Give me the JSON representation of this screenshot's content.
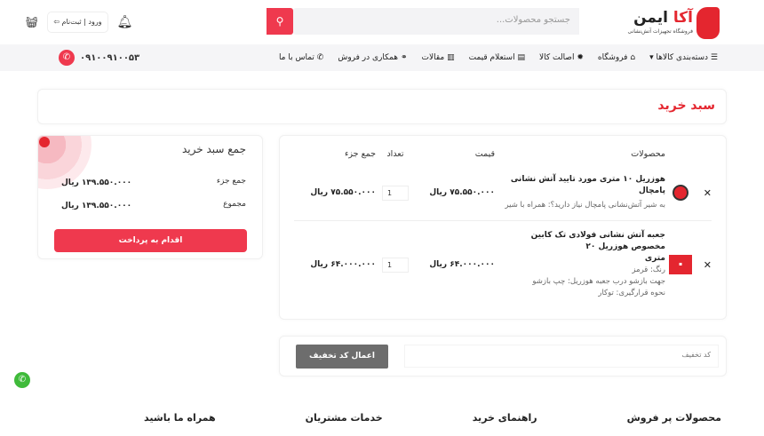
{
  "header": {
    "logo_name_red": "آکا",
    "logo_name_dark": "ایمن",
    "logo_subtitle": "فروشگاه تجهیزات آتش‌نشانی",
    "search_placeholder": "جستجو محصولات...",
    "login_label": "ورود | ثبت‌نام"
  },
  "nav": {
    "items": [
      "دسته‌بندی کالاها",
      "فروشگاه",
      "اصالت کالا",
      "استعلام قیمت",
      "مقالات",
      "همکاری در فروش",
      "تماس با ما"
    ],
    "phone": "۰۹۱۰۰۹۱۰۰۵۳"
  },
  "page_title": "سبد خرید",
  "cart": {
    "headers": {
      "products": "محصولات",
      "price": "قیمت",
      "qty": "تعداد",
      "subtotal": "جمع جزء"
    },
    "items": [
      {
        "name": "هوزریل ۱۰ متری مورد تایید آتش نشانی پامچال",
        "details": [
          "به شیر آتش‌نشانی پامچال نیاز دارید؟: همراه با شیر"
        ],
        "price": "۷۵.۵۵۰.۰۰۰ ریال",
        "qty": "1",
        "subtotal": "۷۵.۵۵۰.۰۰۰ ریال"
      },
      {
        "name": "جعبه آتش نشانی فولادی تک کابین مخصوص هوزریل ۲۰",
        "name2": "متری",
        "details": [
          "رنگ: قرمز",
          "جهت بازشو درب جعبه هوزریل: چپ بازشو",
          "نحوه قرارگیری: توکار"
        ],
        "price": "۶۴.۰۰۰.۰۰۰ ریال",
        "qty": "1",
        "subtotal": "۶۴.۰۰۰.۰۰۰ ریال"
      }
    ]
  },
  "summary": {
    "title": "جمع سبد خرید",
    "subtotal_label": "جمع جزء",
    "subtotal": "۱۳۹.۵۵۰.۰۰۰ ریال",
    "total_label": "مجموع",
    "total": "۱۳۹.۵۵۰.۰۰۰ ریال",
    "pay_button": "اقدام به پرداخت"
  },
  "coupon": {
    "placeholder": "کد تخفیف",
    "button": "اعمال کد تخفیف"
  },
  "footer": {
    "headings": [
      "محصولات پر فروش",
      "راهنمای خرید",
      "خدمات مشتریان",
      "همراه ما باشید"
    ]
  },
  "colors": {
    "accent": "#ef394e",
    "brand_red": "#e4262f",
    "nav_bg": "#f5f5f7"
  }
}
